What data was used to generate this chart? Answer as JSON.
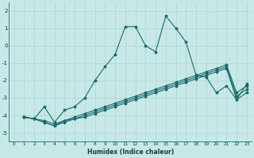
{
  "xlabel": "Humidex (Indice chaleur)",
  "background_color": "#c8e8e8",
  "grid_color": "#aad4d4",
  "line_color": "#1a6b6b",
  "xlim": [
    -0.5,
    23.5
  ],
  "ylim": [
    -5.5,
    2.5
  ],
  "xticks": [
    0,
    1,
    2,
    3,
    4,
    5,
    6,
    7,
    8,
    9,
    10,
    11,
    12,
    13,
    14,
    15,
    16,
    17,
    18,
    19,
    20,
    21,
    22,
    23
  ],
  "yticks": [
    -5,
    -4,
    -3,
    -2,
    -1,
    0,
    1,
    2
  ],
  "curve1_x": [
    1,
    2,
    3,
    4,
    5,
    6,
    7,
    8,
    9,
    10,
    11,
    12,
    13,
    14,
    15,
    16,
    17,
    18,
    19,
    20,
    21,
    22,
    23
  ],
  "curve1_y": [
    -4.1,
    -4.2,
    -3.5,
    -4.4,
    -3.7,
    -3.5,
    -3.0,
    -2.0,
    -1.2,
    -0.5,
    1.1,
    1.1,
    0.0,
    -0.35,
    1.7,
    1.0,
    0.2,
    -1.7,
    -1.8,
    -2.7,
    -2.3,
    -3.1,
    -2.2
  ],
  "curve2_x": [
    1,
    2,
    3,
    4,
    5,
    6,
    7,
    8,
    9,
    10,
    11,
    12,
    13,
    14,
    15,
    16,
    17,
    18,
    19,
    20,
    21,
    22,
    23
  ],
  "curve2_y": [
    -4.1,
    -4.2,
    -4.3,
    -4.5,
    -4.3,
    -4.1,
    -3.9,
    -3.7,
    -3.5,
    -3.3,
    -3.1,
    -2.9,
    -2.7,
    -2.5,
    -2.3,
    -2.1,
    -1.9,
    -1.7,
    -1.5,
    -1.3,
    -1.1,
    -2.7,
    -2.3
  ],
  "curve3_x": [
    1,
    2,
    3,
    4,
    5,
    6,
    7,
    8,
    9,
    10,
    11,
    12,
    13,
    14,
    15,
    16,
    17,
    18,
    19,
    20,
    21,
    22,
    23
  ],
  "curve3_y": [
    -4.1,
    -4.2,
    -4.4,
    -4.6,
    -4.3,
    -4.2,
    -4.0,
    -3.8,
    -3.6,
    -3.4,
    -3.2,
    -3.0,
    -2.8,
    -2.6,
    -2.4,
    -2.2,
    -2.0,
    -1.8,
    -1.6,
    -1.4,
    -1.2,
    -2.9,
    -2.5
  ],
  "curve4_x": [
    1,
    2,
    3,
    4,
    5,
    6,
    7,
    8,
    9,
    10,
    11,
    12,
    13,
    14,
    15,
    16,
    17,
    18,
    19,
    20,
    21,
    22,
    23
  ],
  "curve4_y": [
    -4.1,
    -4.2,
    -4.4,
    -4.6,
    -4.4,
    -4.2,
    -4.1,
    -3.9,
    -3.7,
    -3.5,
    -3.3,
    -3.1,
    -2.9,
    -2.7,
    -2.5,
    -2.3,
    -2.1,
    -1.9,
    -1.7,
    -1.5,
    -1.3,
    -3.1,
    -2.7
  ]
}
